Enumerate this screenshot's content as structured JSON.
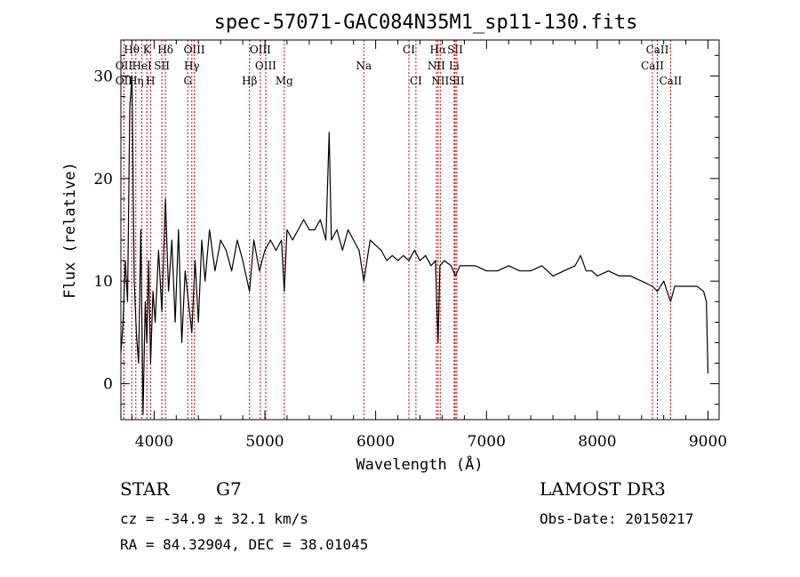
{
  "chart_data": {
    "type": "line",
    "title": "spec-57071-GAC084N35M1_sp11-130.fits",
    "xlabel": "Wavelength (Å)",
    "ylabel": "Flux (relative)",
    "xlim": [
      3700,
      9100
    ],
    "ylim": [
      -3.5,
      33.5
    ],
    "xticks": [
      4000,
      5000,
      6000,
      7000,
      8000,
      9000
    ],
    "yticks": [
      0,
      10,
      20,
      30
    ],
    "grid": false,
    "series": [
      {
        "name": "spectrum",
        "x": [
          3700,
          3720,
          3740,
          3760,
          3780,
          3800,
          3820,
          3840,
          3860,
          3880,
          3900,
          3920,
          3934,
          3950,
          3968,
          3990,
          4010,
          4040,
          4070,
          4102,
          4130,
          4160,
          4190,
          4220,
          4250,
          4280,
          4310,
          4340,
          4370,
          4400,
          4430,
          4460,
          4500,
          4550,
          4600,
          4650,
          4700,
          4750,
          4800,
          4861,
          4900,
          4950,
          5000,
          5050,
          5100,
          5150,
          5175,
          5200,
          5250,
          5300,
          5350,
          5400,
          5450,
          5500,
          5550,
          5580,
          5600,
          5650,
          5700,
          5750,
          5800,
          5850,
          5893,
          5950,
          6000,
          6050,
          6100,
          6150,
          6200,
          6250,
          6300,
          6350,
          6400,
          6450,
          6500,
          6540,
          6563,
          6580,
          6620,
          6680,
          6720,
          6760,
          6800,
          6900,
          7000,
          7100,
          7200,
          7300,
          7400,
          7500,
          7600,
          7700,
          7800,
          7850,
          7900,
          7950,
          8000,
          8100,
          8200,
          8300,
          8400,
          8498,
          8542,
          8600,
          8662,
          8700,
          8800,
          8900,
          8960,
          8985,
          9000
        ],
        "y": [
          3,
          6,
          12,
          8,
          27,
          30,
          10,
          5,
          2,
          15,
          -3,
          8,
          4,
          12,
          2,
          9,
          6,
          13,
          7,
          18,
          9,
          14,
          6,
          15,
          4,
          11,
          8,
          5,
          12,
          6,
          14,
          10,
          15,
          11,
          14,
          13,
          11,
          14,
          12,
          9,
          14,
          11,
          13,
          14,
          13,
          14,
          9,
          15,
          14,
          15,
          16,
          15,
          15,
          16,
          14,
          24.5,
          14,
          15,
          13,
          15,
          14,
          13,
          10,
          14,
          13.5,
          13,
          12,
          12.5,
          12,
          12.5,
          12,
          13,
          12,
          12.5,
          11.5,
          12,
          4,
          11.5,
          12,
          11.5,
          10.5,
          11.5,
          11.5,
          11.5,
          11,
          11,
          11.5,
          11,
          11,
          11.5,
          10.5,
          11,
          11.5,
          12.5,
          11,
          11,
          10.5,
          11,
          10.5,
          10.5,
          10,
          9.5,
          9,
          10,
          8,
          9.5,
          9.5,
          9.5,
          9,
          8,
          1
        ]
      }
    ],
    "spectral_lines": [
      {
        "label": "Hθ",
        "x": 3798,
        "row": 1
      },
      {
        "label": "K",
        "x": 3934,
        "row": 1
      },
      {
        "label": "Hδ",
        "x": 4102,
        "row": 1
      },
      {
        "label": "OIII",
        "x": 4363,
        "row": 1
      },
      {
        "label": "OIII",
        "x": 4959,
        "row": 1
      },
      {
        "label": "CI",
        "x": 6300,
        "row": 1
      },
      {
        "label": "Hα",
        "x": 6563,
        "row": 1
      },
      {
        "label": "SII",
        "x": 6717,
        "row": 1
      },
      {
        "label": "CaII",
        "x": 8542,
        "row": 1
      },
      {
        "label": "OII",
        "x": 3727,
        "row": 2
      },
      {
        "label": "HeI",
        "x": 3889,
        "row": 2
      },
      {
        "label": "SII",
        "x": 4070,
        "row": 2
      },
      {
        "label": "Hγ",
        "x": 4340,
        "row": 2
      },
      {
        "label": "OIII",
        "x": 5007,
        "row": 2
      },
      {
        "label": "Na",
        "x": 5893,
        "row": 2
      },
      {
        "label": "NII",
        "x": 6548,
        "row": 2
      },
      {
        "label": "Li",
        "x": 6708,
        "row": 2
      },
      {
        "label": "CaII",
        "x": 8498,
        "row": 2
      },
      {
        "label": "OII",
        "x": 3727,
        "row": 3
      },
      {
        "label": "Hη",
        "x": 3835,
        "row": 3
      },
      {
        "label": "H",
        "x": 3968,
        "row": 3
      },
      {
        "label": "G",
        "x": 4304,
        "row": 3
      },
      {
        "label": "Hβ",
        "x": 4861,
        "row": 3
      },
      {
        "label": "Mg",
        "x": 5175,
        "row": 3
      },
      {
        "label": "CI",
        "x": 6363,
        "row": 3
      },
      {
        "label": "NII",
        "x": 6583,
        "row": 3
      },
      {
        "label": "SII",
        "x": 6731,
        "row": 3
      },
      {
        "label": "CaII",
        "x": 8662,
        "row": 3
      }
    ],
    "line_color": "#000000",
    "marker_color": "#cc0000"
  },
  "info": {
    "class_label": "STAR",
    "subclass": "G7",
    "survey": "LAMOST DR3",
    "cz": "cz = -34.9 ± 32.1 km/s",
    "obs_date": "Obs-Date: 20150217",
    "coords": "RA =  84.32904, DEC =  38.01045"
  }
}
